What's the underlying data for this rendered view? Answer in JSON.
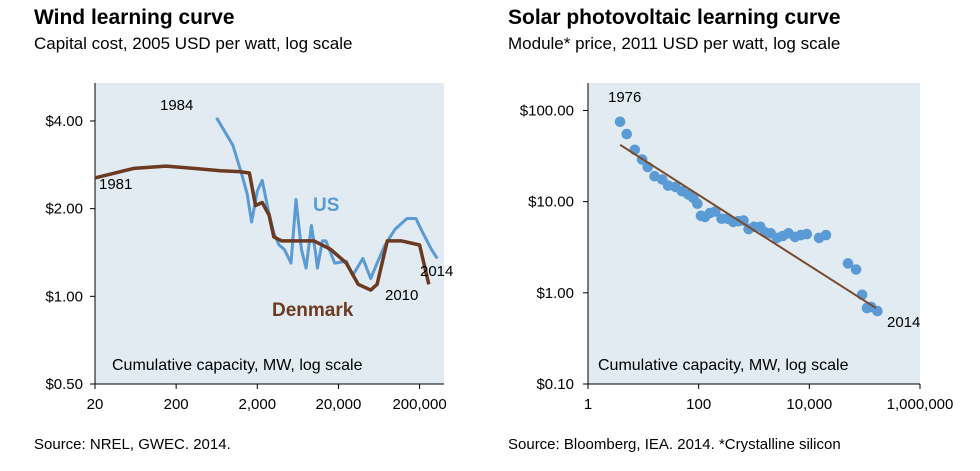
{
  "left": {
    "title": "Wind learning curve",
    "subtitle": "Capital cost, 2005 USD per watt, log scale",
    "source": "Source: NREL, GWEC. 2014."
  },
  "right": {
    "title": "Solar photovoltaic learning curve",
    "subtitle": "Module* price, 2011 USD per watt, log scale",
    "source": "Source: Bloomberg, IEA. 2014. *Crystalline silicon"
  },
  "colors": {
    "plot_bg": "#e1ebf1",
    "us": "#5b9bd5",
    "denmark": "#6b3a21",
    "trend": "#7a4a2a",
    "points": "#5b9bd5"
  },
  "chart_data": [
    {
      "type": "line",
      "title": "Wind learning curve",
      "subtitle": "Capital cost, 2005 USD per watt, log scale",
      "xlabel": "Cumulative capacity, MW, log scale",
      "xscale": "log",
      "yscale": "log",
      "xlim": [
        20,
        400000
      ],
      "ylim": [
        0.5,
        5.4
      ],
      "xticks": [
        20,
        200,
        2000,
        20000,
        200000
      ],
      "xtick_labels": [
        "20",
        "200",
        "2,000",
        "20,000",
        "200,000"
      ],
      "yticks": [
        0.5,
        1,
        2,
        4
      ],
      "ytick_labels": [
        "$0.50",
        "$1.00",
        "$2.00",
        "$4.00"
      ],
      "grid": false,
      "series": [
        {
          "name": "US",
          "color": "#5b9bd5",
          "x": [
            630,
            1000,
            1300,
            1500,
            1700,
            2000,
            2300,
            2700,
            3200,
            3700,
            4300,
            5200,
            6000,
            7000,
            8000,
            9300,
            10500,
            11000,
            12700,
            14000,
            18000,
            25000,
            30000,
            40000,
            50000,
            60000,
            75000,
            100000,
            140000,
            180000,
            220000,
            280000,
            330000
          ],
          "y": [
            4.1,
            3.3,
            2.6,
            2.25,
            1.8,
            2.3,
            2.5,
            2.0,
            1.65,
            1.5,
            1.45,
            1.3,
            2.15,
            1.45,
            1.25,
            1.75,
            1.4,
            1.25,
            1.55,
            1.55,
            1.3,
            1.32,
            1.18,
            1.35,
            1.15,
            1.3,
            1.5,
            1.7,
            1.85,
            1.85,
            1.65,
            1.45,
            1.35
          ]
        },
        {
          "name": "Denmark",
          "color": "#6b3a21",
          "x": [
            20,
            60,
            150,
            330,
            700,
            1200,
            1600,
            1900,
            2300,
            2800,
            3200,
            4000,
            6000,
            10000,
            16000,
            25000,
            35000,
            50000,
            60000,
            80000,
            120000,
            200000,
            260000
          ],
          "y": [
            2.55,
            2.75,
            2.8,
            2.75,
            2.7,
            2.68,
            2.65,
            2.05,
            2.1,
            1.9,
            1.6,
            1.55,
            1.55,
            1.55,
            1.45,
            1.3,
            1.1,
            1.05,
            1.1,
            1.55,
            1.55,
            1.5,
            1.1
          ]
        }
      ],
      "annotations": [
        {
          "text": "1984"
        },
        {
          "text": "1981"
        },
        {
          "text": "US"
        },
        {
          "text": "2014"
        },
        {
          "text": "2010"
        },
        {
          "text": "Denmark"
        }
      ]
    },
    {
      "type": "scatter",
      "title": "Solar photovoltaic learning curve",
      "subtitle": "Module* price, 2011 USD per watt, log scale",
      "xlabel": "Cumulative capacity, MW, log scale",
      "xscale": "log",
      "yscale": "log",
      "xlim": [
        1,
        1000000
      ],
      "ylim": [
        0.1,
        200
      ],
      "xticks": [
        1,
        100,
        10000,
        1000000
      ],
      "xtick_labels": [
        "1",
        "100",
        "10,000",
        "1,000,000"
      ],
      "yticks": [
        0.1,
        1,
        10,
        100
      ],
      "ytick_labels": [
        "$0.10",
        "$1.00",
        "$10.00",
        "$100.00"
      ],
      "grid": false,
      "series": [
        {
          "name": "Module price",
          "x": [
            3.8,
            5,
            7,
            9.5,
            12,
            16,
            22,
            28,
            38,
            50,
            65,
            80,
            95,
            110,
            130,
            160,
            200,
            260,
            330,
            420,
            520,
            650,
            800,
            1000,
            1300,
            1600,
            2000,
            2600,
            3300,
            4200,
            5500,
            7000,
            9000,
            15000,
            20000,
            50000,
            70000,
            90000,
            110000,
            130000,
            170000
          ],
          "y": [
            75,
            55,
            37,
            29,
            24,
            19,
            17.5,
            15,
            14.5,
            13,
            12,
            11,
            9.5,
            7,
            6.8,
            7.5,
            7.8,
            6.5,
            6.5,
            6,
            6.1,
            6.2,
            5,
            5.3,
            5.3,
            4.6,
            4.5,
            4,
            4.2,
            4.5,
            4.1,
            4.3,
            4.4,
            4,
            4.3,
            2.1,
            1.8,
            0.95,
            0.68,
            0.7,
            0.63
          ]
        }
      ],
      "trend": {
        "x": [
          3.8,
          160000
        ],
        "y": [
          42,
          0.68
        ]
      },
      "annotations": [
        {
          "text": "1976"
        },
        {
          "text": "2014"
        }
      ]
    }
  ]
}
